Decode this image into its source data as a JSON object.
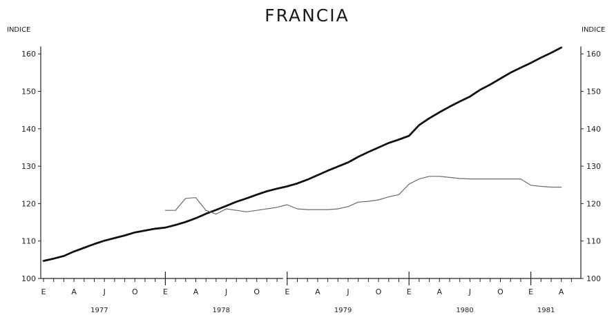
{
  "chart_data": {
    "type": "line",
    "title": "FRANCIA",
    "ylabel_left": "INDICE",
    "ylabel_right": "INDICE",
    "ylim": [
      100,
      162
    ],
    "yticks": [
      100,
      110,
      120,
      130,
      140,
      150,
      160
    ],
    "month_letters": [
      "E",
      "A",
      "J",
      "O"
    ],
    "years": [
      "1977",
      "1978",
      "1979",
      "1980",
      "1981"
    ],
    "x_range_months": [
      "1977-01",
      "1981-05"
    ],
    "grid": false,
    "legend": "none",
    "series": [
      {
        "style": "thick",
        "color": "#111111",
        "points": [
          [
            "1977-01",
            104.7
          ],
          [
            "1977-02",
            105.3
          ],
          [
            "1977-03",
            106.0
          ],
          [
            "1977-04",
            107.2
          ],
          [
            "1977-05",
            108.2
          ],
          [
            "1977-06",
            109.2
          ],
          [
            "1977-07",
            110.1
          ],
          [
            "1977-08",
            110.8
          ],
          [
            "1977-09",
            111.5
          ],
          [
            "1977-10",
            112.3
          ],
          [
            "1977-11",
            112.8
          ],
          [
            "1977-12",
            113.3
          ],
          [
            "1978-01",
            113.6
          ],
          [
            "1978-02",
            114.3
          ],
          [
            "1978-03",
            115.1
          ],
          [
            "1978-04",
            116.1
          ],
          [
            "1978-05",
            117.3
          ],
          [
            "1978-06",
            118.3
          ],
          [
            "1978-07",
            119.4
          ],
          [
            "1978-08",
            120.5
          ],
          [
            "1978-09",
            121.4
          ],
          [
            "1978-10",
            122.4
          ],
          [
            "1978-11",
            123.3
          ],
          [
            "1978-12",
            124.0
          ],
          [
            "1979-01",
            124.6
          ],
          [
            "1979-02",
            125.4
          ],
          [
            "1979-03",
            126.4
          ],
          [
            "1979-04",
            127.6
          ],
          [
            "1979-05",
            128.8
          ],
          [
            "1979-06",
            129.9
          ],
          [
            "1979-07",
            131.0
          ],
          [
            "1979-08",
            132.5
          ],
          [
            "1979-09",
            133.8
          ],
          [
            "1979-10",
            135.0
          ],
          [
            "1979-11",
            136.2
          ],
          [
            "1979-12",
            137.1
          ],
          [
            "1980-01",
            138.1
          ],
          [
            "1980-02",
            141.0
          ],
          [
            "1980-03",
            142.8
          ],
          [
            "1980-04",
            144.4
          ],
          [
            "1980-05",
            145.9
          ],
          [
            "1980-06",
            147.3
          ],
          [
            "1980-07",
            148.6
          ],
          [
            "1980-08",
            150.4
          ],
          [
            "1980-09",
            151.8
          ],
          [
            "1980-10",
            153.4
          ],
          [
            "1980-11",
            155.0
          ],
          [
            "1980-12",
            156.3
          ],
          [
            "1981-01",
            157.6
          ],
          [
            "1981-02",
            159.0
          ],
          [
            "1981-03",
            160.3
          ],
          [
            "1981-04",
            161.7
          ]
        ]
      },
      {
        "style": "thin",
        "color": "#6a6a6a",
        "points": [
          [
            "1978-01",
            118.2
          ],
          [
            "1978-02",
            118.2
          ],
          [
            "1978-03",
            121.4
          ],
          [
            "1978-04",
            121.6
          ],
          [
            "1978-05",
            118.2
          ],
          [
            "1978-06",
            117.2
          ],
          [
            "1978-07",
            118.6
          ],
          [
            "1978-08",
            118.2
          ],
          [
            "1978-09",
            117.8
          ],
          [
            "1978-10",
            118.2
          ],
          [
            "1978-11",
            118.6
          ],
          [
            "1978-12",
            119.0
          ],
          [
            "1979-01",
            119.7
          ],
          [
            "1979-02",
            118.6
          ],
          [
            "1979-03",
            118.4
          ],
          [
            "1979-04",
            118.4
          ],
          [
            "1979-05",
            118.4
          ],
          [
            "1979-06",
            118.6
          ],
          [
            "1979-07",
            119.2
          ],
          [
            "1979-08",
            120.4
          ],
          [
            "1979-09",
            120.6
          ],
          [
            "1979-10",
            121.0
          ],
          [
            "1979-11",
            121.8
          ],
          [
            "1979-12",
            122.4
          ],
          [
            "1980-01",
            125.2
          ],
          [
            "1980-02",
            126.6
          ],
          [
            "1980-03",
            127.3
          ],
          [
            "1980-04",
            127.3
          ],
          [
            "1980-05",
            127.0
          ],
          [
            "1980-06",
            126.7
          ],
          [
            "1980-07",
            126.6
          ],
          [
            "1980-08",
            126.6
          ],
          [
            "1980-09",
            126.6
          ],
          [
            "1980-10",
            126.6
          ],
          [
            "1980-11",
            126.6
          ],
          [
            "1980-12",
            126.6
          ],
          [
            "1981-01",
            124.9
          ],
          [
            "1981-02",
            124.6
          ],
          [
            "1981-03",
            124.4
          ],
          [
            "1981-04",
            124.4
          ]
        ]
      }
    ]
  }
}
